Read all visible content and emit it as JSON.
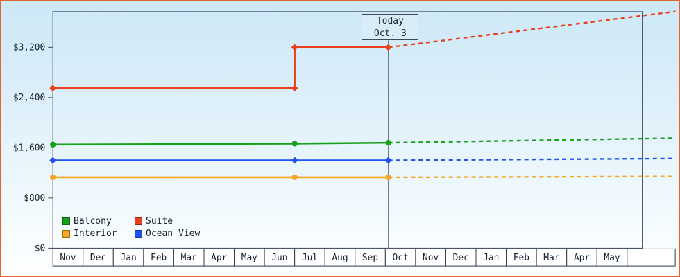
{
  "chart_data": {
    "type": "line",
    "title": "",
    "x_axis": {
      "months": [
        "Nov",
        "Dec",
        "Jan",
        "Feb",
        "Mar",
        "Apr",
        "May",
        "Jun",
        "Jul",
        "Aug",
        "Sep",
        "Oct",
        "Nov",
        "Dec",
        "Jan",
        "Feb",
        "Mar",
        "Apr",
        "May"
      ]
    },
    "y_axis": {
      "ticks": [
        0,
        800,
        1600,
        2400,
        3200
      ],
      "tick_labels": [
        "$0",
        "$800",
        "$1,600",
        "$2,400",
        "$3,200"
      ]
    },
    "ylim": [
      0,
      3800
    ],
    "grid": false,
    "legend_position": "bottom-left",
    "today": {
      "line1": "Today",
      "line2": "Oct. 3",
      "month_index": 11.1
    },
    "series": [
      {
        "name": "Suite",
        "color": "#e8401c",
        "marker": "diamond",
        "solid": [
          [
            0,
            2550
          ],
          [
            8,
            2550
          ],
          [
            8,
            3200
          ],
          [
            11.1,
            3200
          ]
        ],
        "dashed": [
          [
            11.1,
            3200
          ],
          [
            20.6,
            3770
          ]
        ],
        "markers": [
          [
            0,
            2550
          ],
          [
            8,
            2550
          ],
          [
            8,
            3200
          ],
          [
            11.1,
            3200
          ]
        ]
      },
      {
        "name": "Balcony",
        "color": "#18a018",
        "marker": "circle",
        "solid": [
          [
            0,
            1650
          ],
          [
            8,
            1665
          ],
          [
            11.1,
            1680
          ]
        ],
        "dashed": [
          [
            11.1,
            1680
          ],
          [
            20.6,
            1755
          ]
        ],
        "markers": [
          [
            0,
            1650
          ],
          [
            8,
            1665
          ],
          [
            11.1,
            1680
          ]
        ]
      },
      {
        "name": "Ocean View",
        "color": "#2050f0",
        "marker": "diamond",
        "solid": [
          [
            0,
            1400
          ],
          [
            11.1,
            1400
          ]
        ],
        "dashed": [
          [
            11.1,
            1400
          ],
          [
            20.6,
            1430
          ]
        ],
        "markers": [
          [
            0,
            1400
          ],
          [
            8,
            1400
          ],
          [
            11.1,
            1400
          ]
        ]
      },
      {
        "name": "Interior",
        "color": "#f5a623",
        "marker": "circle",
        "solid": [
          [
            0,
            1130
          ],
          [
            11.1,
            1130
          ]
        ],
        "dashed": [
          [
            11.1,
            1130
          ],
          [
            20.6,
            1145
          ]
        ],
        "markers": [
          [
            0,
            1130
          ],
          [
            8,
            1130
          ],
          [
            11.1,
            1130
          ]
        ]
      }
    ],
    "legend_order": [
      "Balcony",
      "Suite",
      "Interior",
      "Ocean View"
    ],
    "colors": {
      "frame": "#e4662e",
      "background_top": "#cde8f7",
      "background_bottom": "#ffffff",
      "axis": "#3b4a5a"
    }
  }
}
